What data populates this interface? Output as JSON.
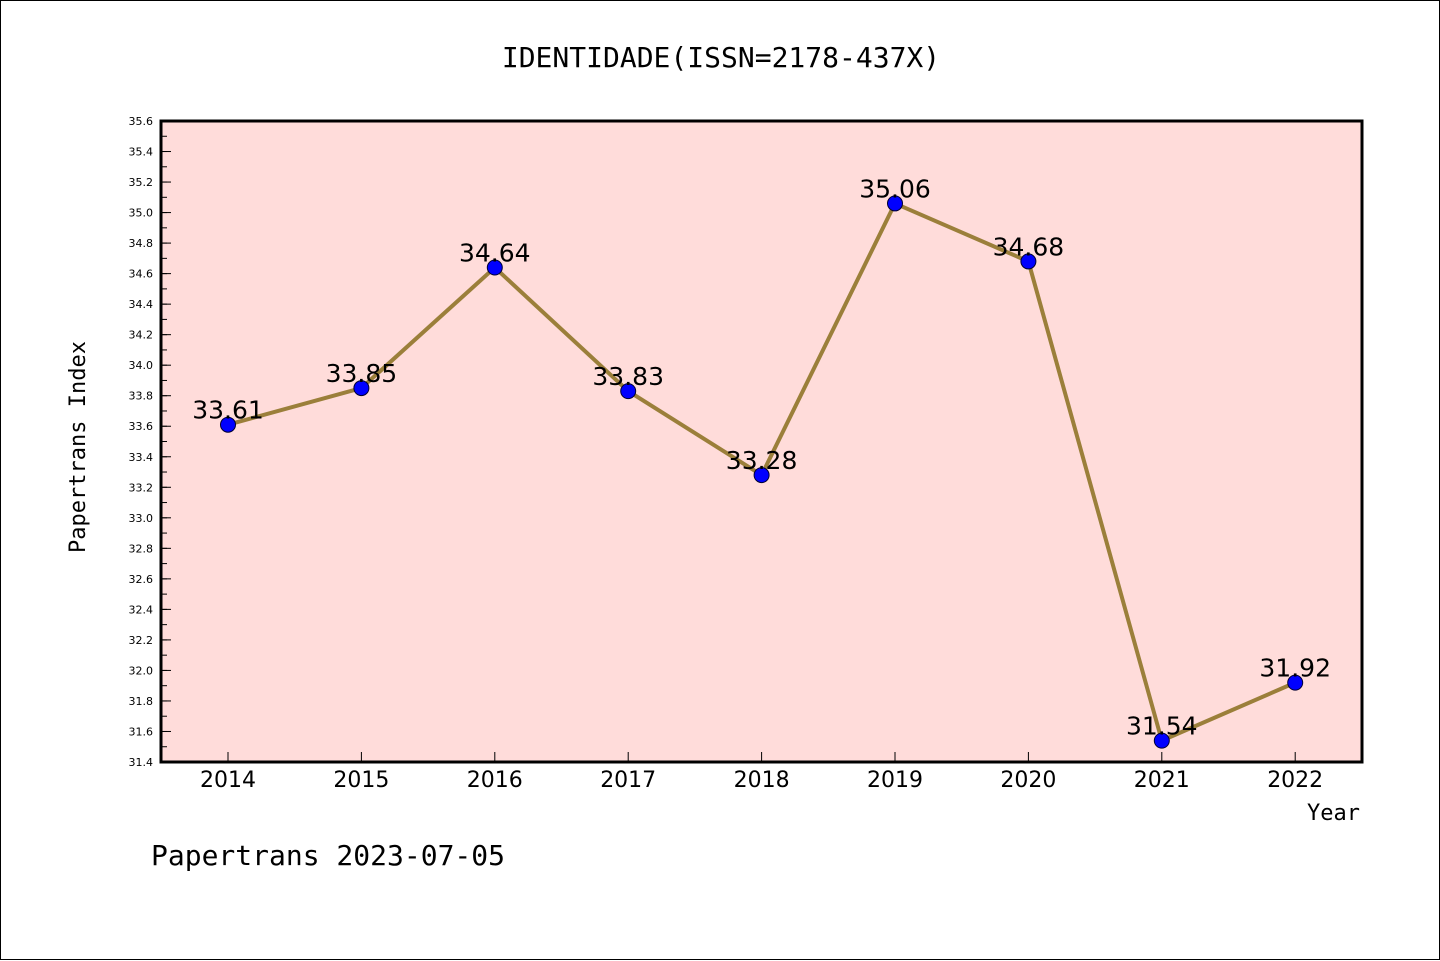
{
  "chart_data": {
    "type": "line",
    "title": "IDENTIDADE(ISSN=2178-437X)",
    "xlabel": "Year",
    "ylabel": "Papertrans Index",
    "x": [
      "2014",
      "2015",
      "2016",
      "2017",
      "2018",
      "2019",
      "2020",
      "2021",
      "2022"
    ],
    "values": [
      33.61,
      33.85,
      34.64,
      33.83,
      33.28,
      35.06,
      34.68,
      31.54,
      31.92
    ],
    "value_labels": [
      "33.61",
      "33.85",
      "34.64",
      "33.83",
      "33.28",
      "35.06",
      "34.68",
      "31.54",
      "31.92"
    ],
    "ylim": [
      31.4,
      35.6
    ],
    "yticks": [
      "31.4",
      "31.6",
      "31.8",
      "32.0",
      "32.2",
      "32.4",
      "32.6",
      "32.8",
      "33.0",
      "33.2",
      "33.4",
      "33.6",
      "33.8",
      "34.0",
      "34.2",
      "34.4",
      "34.6",
      "34.8",
      "35.0",
      "35.2",
      "35.4",
      "35.6"
    ],
    "grid": false,
    "colors": {
      "plot_background": "#ffdcda",
      "line": "#9b7f3a",
      "marker": "#0000ff"
    }
  },
  "footer": "Papertrans 2023-07-05"
}
